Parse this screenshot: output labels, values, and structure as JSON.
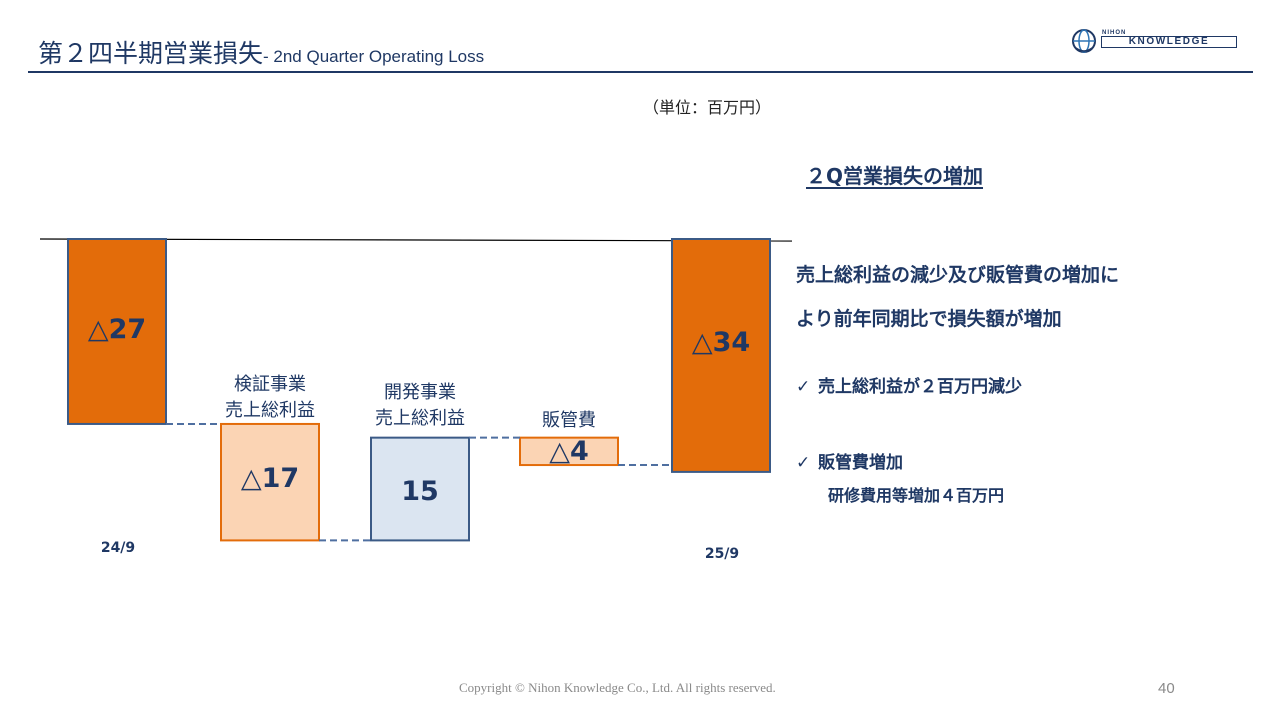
{
  "header": {
    "title_jp": "第２四半期営業損失",
    "title_en": "- 2nd Quarter Operating Loss"
  },
  "logo": {
    "small_text": "NIHON",
    "main_text": "KNOWLEDGE",
    "globe_icon": "globe-icon"
  },
  "unit_label": "（単位：百万円）",
  "chart_data": {
    "type": "bar",
    "subtype": "waterfall",
    "categories": [
      "24/9",
      "検証事業\n売上総利益",
      "開発事業\n売上総利益",
      "販管費",
      "25/9"
    ],
    "series": [
      {
        "values": [
          -27,
          -17,
          15,
          -4,
          -34
        ],
        "labels": [
          "△27",
          "△17",
          "15",
          "△4",
          "△34"
        ]
      }
    ],
    "category_labels": [
      {
        "text": "24/9",
        "lines": [
          "24/9"
        ]
      },
      {
        "text": "検証事業 売上総利益",
        "lines": [
          "検証事業",
          "売上総利益"
        ]
      },
      {
        "text": "開発事業 売上総利益",
        "lines": [
          "開発事業",
          "売上総利益"
        ]
      },
      {
        "text": "販管費",
        "lines": [
          "販管費"
        ]
      },
      {
        "text": "25/9",
        "lines": [
          "25/9"
        ]
      }
    ],
    "bar_kinds": [
      "total",
      "delta",
      "delta",
      "delta",
      "total"
    ],
    "colors": {
      "total_fill": "#e36c0a",
      "total_stroke": "#3b5a86",
      "negative_fill": "#fbd4b4",
      "negative_stroke": "#e36c0a",
      "positive_fill": "#dbe5f1",
      "positive_stroke": "#3b5a86",
      "connector": "#4f6fa0",
      "baseline": "#000000"
    },
    "title": "",
    "xlabel": "",
    "ylabel": ""
  },
  "commentary": {
    "headline": "２Q営業損失の増加",
    "lines": [
      "売上総利益の減少及び販管費の増加に",
      "より前年同期比で損失額が増加"
    ],
    "bullets": [
      {
        "icon": "check-icon",
        "check": "✓",
        "text": "売上総利益が２百万円減少"
      },
      {
        "icon": "check-icon",
        "check": "✓",
        "text": "販管費増加"
      }
    ],
    "sub_text": "研修費用等増加４百万円"
  },
  "footer": {
    "copyright": "Copyright © Nihon Knowledge Co., Ltd. All rights reserved.",
    "page_number": "40"
  }
}
